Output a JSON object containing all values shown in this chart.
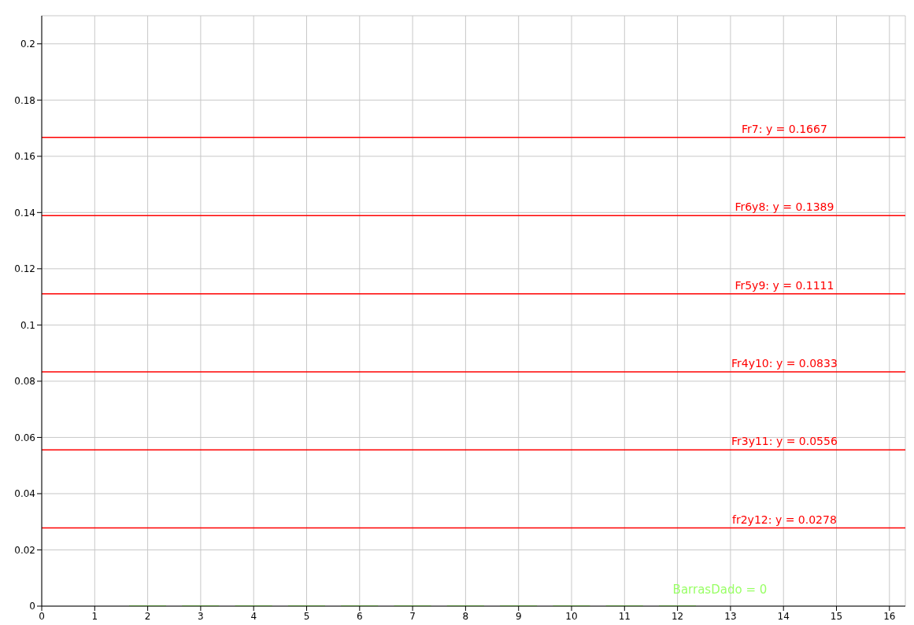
{
  "chart_data": {
    "type": "bar",
    "x": [
      2,
      3,
      4,
      5,
      6,
      7,
      8,
      9,
      10,
      11,
      12
    ],
    "series": [
      {
        "color": "#99ff66",
        "values": [
          0,
          0,
          0,
          0,
          0,
          0,
          0,
          0,
          0,
          0,
          0
        ]
      }
    ],
    "xlim": [
      0,
      16.3
    ],
    "xticks": [
      0,
      1,
      2,
      3,
      4,
      5,
      6,
      7,
      8,
      9,
      10,
      11,
      12,
      13,
      14,
      15,
      16
    ],
    "ylim": [
      0,
      0.21
    ],
    "yticks": [
      0,
      0.02,
      0.04,
      0.06,
      0.08,
      0.1,
      0.12,
      0.14,
      0.16,
      0.18,
      0.2
    ],
    "grid": true,
    "legend": false,
    "ref_lines": [
      {
        "axis": "y",
        "value": 0.1667,
        "label": "Fr7: y = 0.1667",
        "color": "#ff0000"
      },
      {
        "axis": "y",
        "value": 0.1389,
        "label": "Fr6y8: y = 0.1389",
        "color": "#ff0000"
      },
      {
        "axis": "y",
        "value": 0.1111,
        "label": "Fr5y9: y = 0.1111",
        "color": "#ff0000"
      },
      {
        "axis": "y",
        "value": 0.0833,
        "label": "Fr4y10: y = 0.0833",
        "color": "#ff0000"
      },
      {
        "axis": "y",
        "value": 0.0556,
        "label": "Fr3y11: y = 0.0556",
        "color": "#ff0000"
      },
      {
        "axis": "y",
        "value": 0.0278,
        "label": "fr2y12: y = 0.0278",
        "color": "#ff0000"
      }
    ],
    "annotations": [
      "BarrasDado = 0"
    ]
  }
}
